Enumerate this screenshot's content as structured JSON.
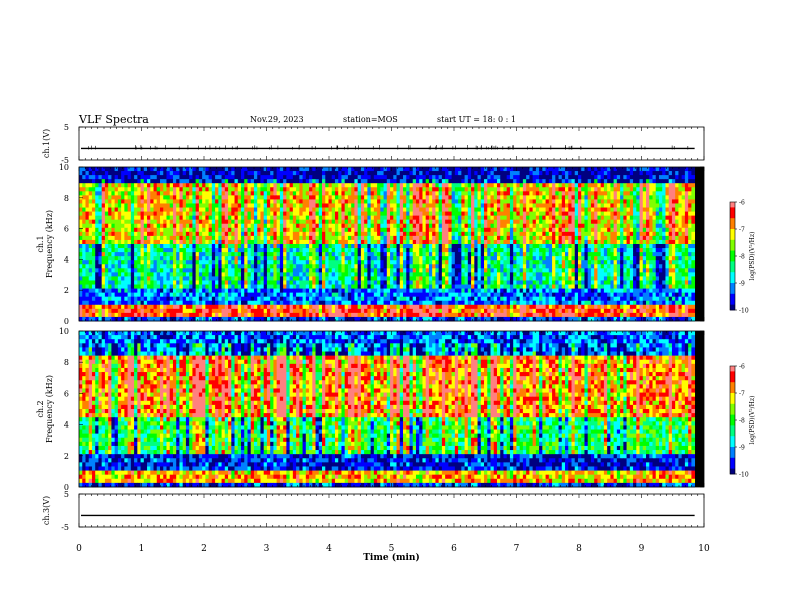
{
  "header": {
    "title": "VLF Spectra",
    "date": "Nov.29, 2023",
    "station": "station=MOS",
    "start_ut": "start UT =  18: 0 : 1"
  },
  "colorscale": [
    "#000080",
    "#0000ff",
    "#0080ff",
    "#00ffff",
    "#00ff80",
    "#00ff00",
    "#80ff00",
    "#ffff00",
    "#ff8000",
    "#ff0000",
    "#ff8080",
    "#ffffff"
  ],
  "chart_data": [
    {
      "type": "line",
      "panel": "ch1-waveform",
      "ylabel": "ch.1(V)",
      "ylim": [
        -5,
        5
      ],
      "yticks": [
        "5",
        "-5"
      ],
      "xlim": [
        0,
        10
      ],
      "baseline": -1.5,
      "x_end": 9.85
    },
    {
      "type": "heatmap",
      "panel": "ch1-spectrogram",
      "ylabel": "ch.1\nFrequency (kHz)",
      "ylim": [
        0,
        10
      ],
      "yticks": [
        "0",
        "2",
        "4",
        "6",
        "8",
        "10"
      ],
      "xlim": [
        0,
        10
      ],
      "colorbar": {
        "label": "log(PSD)(V²/Hz)",
        "range": [
          -10,
          -6
        ],
        "ticks": [
          "-6",
          "-7",
          "-8",
          "-9",
          "-10"
        ]
      },
      "bands": [
        {
          "range_khz": [
            0,
            0.3
          ],
          "level": -9.5
        },
        {
          "range_khz": [
            0.3,
            1.0
          ],
          "level": -6.5
        },
        {
          "range_khz": [
            1.0,
            2.0
          ],
          "level": -9.2
        },
        {
          "range_khz": [
            2.0,
            5.0
          ],
          "level": -8.6
        },
        {
          "range_khz": [
            5.0,
            9.0
          ],
          "level": -7.2
        },
        {
          "range_khz": [
            9.0,
            10.0
          ],
          "level": -9.8
        }
      ]
    },
    {
      "type": "heatmap",
      "panel": "ch2-spectrogram",
      "ylabel": "ch.2\nFrequency (kHz)",
      "ylim": [
        0,
        10
      ],
      "yticks": [
        "0",
        "2",
        "4",
        "6",
        "8",
        "10"
      ],
      "xlim": [
        0,
        10
      ],
      "colorbar": {
        "label": "log(PSD)(V²/Hz)",
        "range": [
          -10,
          -6
        ],
        "ticks": [
          "-6",
          "-7",
          "-8",
          "-9",
          "-10"
        ]
      },
      "bands": [
        {
          "range_khz": [
            0,
            0.3
          ],
          "level": -9.5
        },
        {
          "range_khz": [
            0.3,
            1.0
          ],
          "level": -7.0
        },
        {
          "range_khz": [
            1.0,
            2.0
          ],
          "level": -9.6
        },
        {
          "range_khz": [
            2.0,
            4.5
          ],
          "level": -8.2
        },
        {
          "range_khz": [
            4.5,
            8.5
          ],
          "level": -6.8
        },
        {
          "range_khz": [
            8.5,
            10.0
          ],
          "level": -9.3
        }
      ]
    },
    {
      "type": "line",
      "panel": "ch3-waveform",
      "ylabel": "ch.3(V)",
      "ylim": [
        -5,
        5
      ],
      "yticks": [
        "5",
        "-5"
      ],
      "xlim": [
        0,
        10
      ],
      "baseline": -1.5,
      "x_end": 9.85,
      "xlabel": "Time (min)",
      "xticks": [
        "0",
        "1",
        "2",
        "3",
        "4",
        "5",
        "6",
        "7",
        "8",
        "9",
        "10"
      ]
    }
  ]
}
